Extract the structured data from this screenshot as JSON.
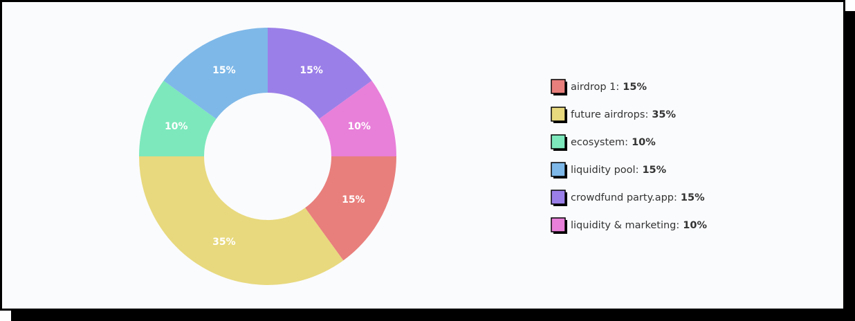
{
  "chart_data": {
    "type": "donut",
    "series": [
      {
        "name": "airdrop 1:",
        "color": "#e87f7c",
        "values": [
          15
        ],
        "value_labels": [
          "15%"
        ]
      },
      {
        "name": "future airdrops:",
        "color": "#e8d97e",
        "values": [
          35
        ],
        "value_labels": [
          "35%"
        ]
      },
      {
        "name": "ecosystem:",
        "color": "#7de8bc",
        "values": [
          10
        ],
        "value_labels": [
          "10%"
        ]
      },
      {
        "name": "liquidity pool:",
        "color": "#7eb8e8",
        "values": [
          15
        ],
        "value_labels": [
          "15%"
        ]
      },
      {
        "name": "crowdfund party.app:",
        "color": "#9b7fe8",
        "values": [
          15
        ],
        "value_labels": [
          "15%"
        ]
      },
      {
        "name": "liquidity & marketing:",
        "color": "#e87fd9",
        "values": [
          10
        ],
        "value_labels": [
          "10%"
        ]
      }
    ]
  }
}
